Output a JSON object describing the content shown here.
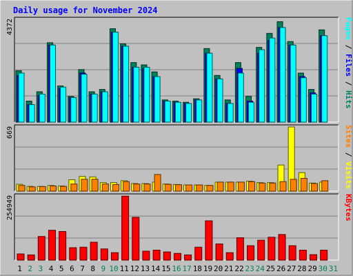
{
  "title": "Daily usage for November 2024",
  "colors": {
    "background": "#c0c0c0",
    "hits": "#00805c",
    "files": "#0000ff",
    "pages": "#00ffff",
    "visits": "#ffff00",
    "sites": "#ff8000",
    "kbytes": "#ff0000",
    "title": "#0000ff",
    "weekend": "#00805c",
    "weekday": "#000000"
  },
  "chart_data": [
    {
      "type": "bar",
      "title": "Daily usage for November 2024",
      "ymax_label": "4372",
      "ymax": 4372,
      "right_label": {
        "parts": [
          "Pages",
          " / ",
          "Files",
          " / ",
          "Hits"
        ]
      },
      "categories": [
        "1",
        "2",
        "3",
        "4",
        "5",
        "6",
        "7",
        "8",
        "9",
        "10",
        "11",
        "12",
        "13",
        "14",
        "15",
        "16",
        "17",
        "18",
        "19",
        "20",
        "21",
        "22",
        "23",
        "24",
        "25",
        "26",
        "27",
        "28",
        "29",
        "30",
        "31"
      ],
      "weekend_days": [
        2,
        3,
        9,
        10,
        16,
        17,
        23,
        24,
        30,
        31
      ],
      "series": [
        {
          "name": "Hits",
          "values": [
            2200,
            900,
            1300,
            3400,
            1550,
            1100,
            2250,
            1300,
            1400,
            4000,
            3350,
            2550,
            2450,
            2150,
            950,
            900,
            850,
            1000,
            3150,
            2000,
            950,
            2550,
            1100,
            3200,
            3800,
            4300,
            3450,
            2100,
            1400,
            3950,
            0
          ]
        },
        {
          "name": "Files",
          "values": [
            2000,
            750,
            1150,
            3300,
            1450,
            1050,
            2100,
            1200,
            1300,
            3850,
            3250,
            2350,
            2300,
            1950,
            900,
            850,
            800,
            950,
            2950,
            1850,
            800,
            2300,
            900,
            2950,
            3500,
            4050,
            3300,
            1950,
            1250,
            3700,
            0
          ]
        },
        {
          "name": "Pages",
          "values": [
            2100,
            750,
            1200,
            3300,
            1500,
            1050,
            2050,
            1200,
            1300,
            3850,
            3250,
            2350,
            2350,
            1950,
            900,
            850,
            800,
            950,
            2950,
            1850,
            800,
            2100,
            850,
            3100,
            3600,
            4050,
            3300,
            1900,
            1200,
            3700,
            0
          ]
        }
      ]
    },
    {
      "type": "bar",
      "ymax_label": "669",
      "ymax": 669,
      "right_label": {
        "parts": [
          "Sites",
          " / ",
          "Visits"
        ]
      },
      "categories": [
        "1",
        "2",
        "3",
        "4",
        "5",
        "6",
        "7",
        "8",
        "9",
        "10",
        "11",
        "12",
        "13",
        "14",
        "15",
        "16",
        "17",
        "18",
        "19",
        "20",
        "21",
        "22",
        "23",
        "24",
        "25",
        "26",
        "27",
        "28",
        "29",
        "30",
        "31"
      ],
      "series": [
        {
          "name": "Visits",
          "values": [
            72,
            50,
            50,
            60,
            55,
            120,
            155,
            150,
            90,
            90,
            110,
            80,
            80,
            95,
            75,
            70,
            65,
            65,
            60,
            95,
            95,
            95,
            105,
            90,
            90,
            275,
            680,
            195,
            85,
            95,
            0
          ]
        },
        {
          "name": "Sites",
          "values": [
            60,
            45,
            48,
            55,
            50,
            75,
            125,
            125,
            75,
            70,
            100,
            75,
            75,
            175,
            72,
            68,
            65,
            65,
            60,
            95,
            95,
            95,
            100,
            85,
            85,
            100,
            125,
            135,
            80,
            110,
            0
          ]
        }
      ]
    },
    {
      "type": "bar",
      "ymax_label": "254949",
      "ymax": 254949,
      "right_label": {
        "parts": [
          "KBytes"
        ]
      },
      "categories": [
        "1",
        "2",
        "3",
        "4",
        "5",
        "6",
        "7",
        "8",
        "9",
        "10",
        "11",
        "12",
        "13",
        "14",
        "15",
        "16",
        "17",
        "18",
        "19",
        "20",
        "21",
        "22",
        "23",
        "24",
        "25",
        "26",
        "27",
        "28",
        "29",
        "30",
        "31"
      ],
      "series": [
        {
          "name": "KBytes",
          "values": [
            25000,
            21000,
            95000,
            120000,
            115000,
            50000,
            52000,
            72000,
            45000,
            30000,
            257000,
            172000,
            36000,
            40000,
            33000,
            27000,
            21000,
            52000,
            158000,
            65000,
            30000,
            90000,
            58000,
            80000,
            92000,
            103000,
            58000,
            40000,
            22000,
            40000,
            0
          ]
        }
      ]
    }
  ]
}
